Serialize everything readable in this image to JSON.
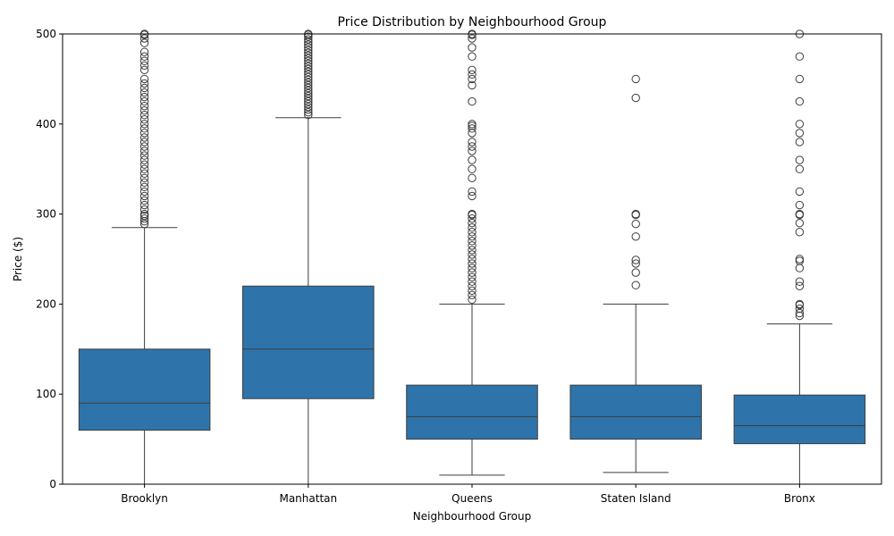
{
  "chart_data": {
    "type": "boxplot",
    "title": "Price Distribution by Neighbourhood Group",
    "xlabel": "Neighbourhood Group",
    "ylabel": "Price ($)",
    "ylim": [
      0,
      500
    ],
    "yticks": [
      0,
      100,
      200,
      300,
      400,
      500
    ],
    "box_color": "#2e74ab",
    "line_color": "#3d3d3d",
    "grid": false,
    "categories": [
      "Brooklyn",
      "Manhattan",
      "Queens",
      "Staten Island",
      "Bronx"
    ],
    "boxes": [
      {
        "category": "Brooklyn",
        "whisker_low": 0,
        "q1": 60,
        "median": 90,
        "q3": 150,
        "whisker_high": 285,
        "outliers": [
          289,
          292,
          295,
          298,
          300,
          305,
          310,
          315,
          320,
          325,
          330,
          335,
          340,
          345,
          350,
          355,
          360,
          365,
          370,
          375,
          380,
          385,
          390,
          395,
          400,
          405,
          410,
          415,
          420,
          425,
          430,
          435,
          440,
          445,
          450,
          460,
          465,
          470,
          475,
          480,
          490,
          495,
          499,
          500
        ]
      },
      {
        "category": "Manhattan",
        "whisker_low": 0,
        "q1": 95,
        "median": 150,
        "q3": 220,
        "whisker_high": 407,
        "outliers": [
          410,
          413,
          416,
          419,
          422,
          425,
          428,
          431,
          434,
          437,
          440,
          443,
          446,
          449,
          452,
          455,
          458,
          461,
          464,
          467,
          470,
          473,
          476,
          479,
          482,
          485,
          488,
          491,
          494,
          497,
          499,
          500
        ]
      },
      {
        "category": "Queens",
        "whisker_low": 10,
        "q1": 50,
        "median": 75,
        "q3": 110,
        "whisker_high": 200,
        "outliers": [
          205,
          210,
          215,
          220,
          225,
          230,
          235,
          240,
          245,
          250,
          255,
          260,
          265,
          270,
          275,
          280,
          285,
          290,
          295,
          299,
          300,
          320,
          325,
          340,
          350,
          360,
          370,
          375,
          380,
          390,
          395,
          398,
          400,
          425,
          443,
          450,
          455,
          460,
          475,
          485,
          495,
          499,
          500
        ]
      },
      {
        "category": "Staten Island",
        "whisker_low": 13,
        "q1": 50,
        "median": 75,
        "q3": 110,
        "whisker_high": 200,
        "outliers": [
          221,
          235,
          245,
          249,
          275,
          289,
          299,
          300,
          429,
          450
        ]
      },
      {
        "category": "Bronx",
        "whisker_low": 0,
        "q1": 45,
        "median": 65,
        "q3": 99,
        "whisker_high": 178,
        "outliers": [
          187,
          190,
          195,
          199,
          200,
          220,
          225,
          240,
          248,
          250,
          280,
          290,
          299,
          300,
          310,
          325,
          350,
          360,
          380,
          390,
          400,
          425,
          450,
          475,
          500
        ]
      }
    ]
  }
}
